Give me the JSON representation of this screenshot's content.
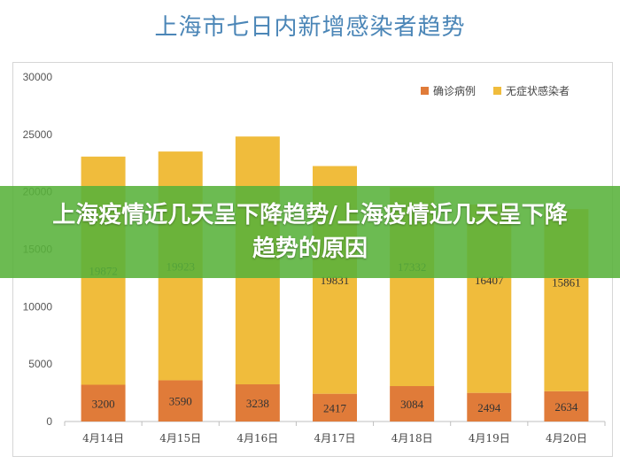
{
  "title": "上海市七日内新增感染者趋势",
  "banner": {
    "text": "上海疫情近几天呈下降趋势/上海疫情近几天呈下降趋势的原因"
  },
  "colors": {
    "confirmed": "#e07b39",
    "asymptomatic": "#f0bc3c",
    "title": "#4b86b7",
    "banner": "#58b23a"
  },
  "chart_data": {
    "type": "bar",
    "stacked": true,
    "title": "上海市七日内新增感染者趋势",
    "categories": [
      "4月14日",
      "4月15日",
      "4月16日",
      "4月17日",
      "4月18日",
      "4月19日",
      "4月20日"
    ],
    "series": [
      {
        "name": "确诊病例",
        "values": [
          3200,
          3590,
          3238,
          2417,
          3084,
          2494,
          2634
        ]
      },
      {
        "name": "无症状感染者",
        "values": [
          19872,
          19923,
          21582,
          19831,
          17332,
          16407,
          15861
        ]
      }
    ],
    "value_labels": {
      "confirmed": [
        "3200",
        "3590",
        "3238",
        "2417",
        "3084",
        "2494",
        "2634"
      ],
      "asymptomatic": [
        "19872",
        "19923",
        "",
        "19831",
        "17332",
        "16407",
        "15861"
      ]
    },
    "ylim": [
      0,
      30000
    ],
    "yticks": [
      "0",
      "5000",
      "10000",
      "15000",
      "20000",
      "25000",
      "30000"
    ],
    "legend_position": "top-right",
    "grid": false
  }
}
